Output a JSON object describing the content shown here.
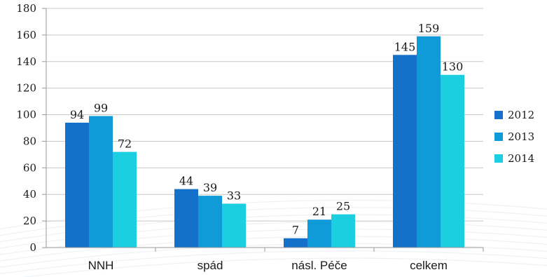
{
  "chart_data": {
    "type": "bar",
    "categories": [
      "NNH",
      "spád",
      "násl. Péče",
      "celkem"
    ],
    "series": [
      {
        "name": "2012",
        "values": [
          94,
          44,
          7,
          145
        ],
        "color": "#1570c9"
      },
      {
        "name": "2013",
        "values": [
          99,
          39,
          21,
          159
        ],
        "color": "#0f9ad8"
      },
      {
        "name": "2014",
        "values": [
          72,
          33,
          25,
          130
        ],
        "color": "#1ccfe0"
      }
    ],
    "yticks": [
      0,
      20,
      40,
      60,
      80,
      100,
      120,
      140,
      160,
      180
    ],
    "ytick_labels": [
      "0",
      "20",
      "40",
      "60",
      "80",
      "100",
      "120",
      "140",
      "160",
      "180"
    ],
    "ylim": [
      0,
      180
    ],
    "grid": true,
    "legend_position": "right",
    "title": "",
    "xlabel": "",
    "ylabel": ""
  }
}
